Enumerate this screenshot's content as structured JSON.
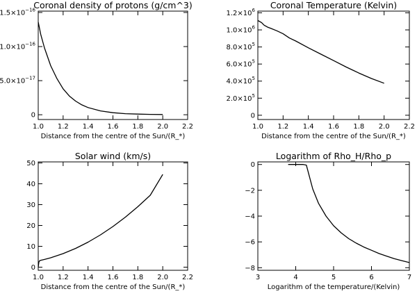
{
  "chart_data": [
    {
      "type": "line",
      "title": "Coronal density of protons (g/cm^3)",
      "xlabel": "Distance from the centre of the Sun/(R_*)",
      "ylabel": "",
      "xlim": [
        1.0,
        2.2
      ],
      "ylim": [
        -7e-18,
        1.52e-16
      ],
      "xticks": [
        {
          "v": 1.0,
          "label": "1.0"
        },
        {
          "v": 1.2,
          "label": "1.2"
        },
        {
          "v": 1.4,
          "label": "1.4"
        },
        {
          "v": 1.6,
          "label": "1.6"
        },
        {
          "v": 1.8,
          "label": "1.8"
        },
        {
          "v": 2.0,
          "label": "2.0"
        },
        {
          "v": 2.2,
          "label": "2.2"
        }
      ],
      "yticks": [
        {
          "v": 0,
          "label": "0"
        },
        {
          "v": 5e-17,
          "label": "5.0×10",
          "exp": "−17"
        },
        {
          "v": 1e-16,
          "label": "1.0×10",
          "exp": "−16"
        },
        {
          "v": 1.5e-16,
          "label": "1.5×10",
          "exp": "−16"
        }
      ],
      "series": [
        {
          "x": [
            1.0,
            1.02,
            1.05,
            1.1,
            1.15,
            1.2,
            1.25,
            1.3,
            1.35,
            1.4,
            1.5,
            1.6,
            1.7,
            1.8,
            1.9,
            2.0
          ],
          "y": [
            1.36e-16,
            1.18e-16,
            9.8e-17,
            7.2e-17,
            5.3e-17,
            3.8e-17,
            2.75e-17,
            2e-17,
            1.45e-17,
            1.05e-17,
            5.6e-18,
            3e-18,
            1.6e-18,
            9e-19,
            5e-19,
            3e-19
          ]
        }
      ]
    },
    {
      "type": "line",
      "title": "Coronal Temperature (Kelvin)",
      "xlabel": "Distance from the centre of the Sun/(R_*)",
      "ylabel": "",
      "xlim": [
        1.0,
        2.2
      ],
      "ylim": [
        -50000.0,
        1220000.0
      ],
      "xticks": [
        {
          "v": 1.0,
          "label": "1.0"
        },
        {
          "v": 1.2,
          "label": "1.2"
        },
        {
          "v": 1.4,
          "label": "1.4"
        },
        {
          "v": 1.6,
          "label": "1.6"
        },
        {
          "v": 1.8,
          "label": "1.8"
        },
        {
          "v": 2.0,
          "label": "2.0"
        },
        {
          "v": 2.2,
          "label": "2.2"
        }
      ],
      "yticks": [
        {
          "v": 0,
          "label": "0"
        },
        {
          "v": 200000.0,
          "label": "2.0×10",
          "exp": "5"
        },
        {
          "v": 400000.0,
          "label": "4.0×10",
          "exp": "5"
        },
        {
          "v": 600000.0,
          "label": "6.0×10",
          "exp": "5"
        },
        {
          "v": 800000.0,
          "label": "8.0×10",
          "exp": "5"
        },
        {
          "v": 1000000.0,
          "label": "1.0×10",
          "exp": "6"
        },
        {
          "v": 1200000.0,
          "label": "1.2×10",
          "exp": "6"
        }
      ],
      "series": [
        {
          "x": [
            1.0,
            1.03,
            1.05,
            1.08,
            1.1,
            1.15,
            1.2,
            1.25,
            1.3,
            1.4,
            1.5,
            1.6,
            1.7,
            1.8,
            1.9,
            2.0
          ],
          "y": [
            1110000.0,
            1085000.0,
            1055000.0,
            1030000.0,
            1020000.0,
            990000.0,
            955000.0,
            905000.0,
            870000.0,
            790000.0,
            715000.0,
            640000.0,
            565000.0,
            495000.0,
            430000.0,
            375000.0
          ]
        }
      ]
    },
    {
      "type": "line",
      "title": "Solar wind (km/s)",
      "xlabel": "Distance from the centre of the Sun/(R_*)",
      "ylabel": "",
      "xlim": [
        1.0,
        2.2
      ],
      "ylim": [
        -1.5,
        50.5
      ],
      "xticks": [
        {
          "v": 1.0,
          "label": "1.0"
        },
        {
          "v": 1.2,
          "label": "1.2"
        },
        {
          "v": 1.4,
          "label": "1.4"
        },
        {
          "v": 1.6,
          "label": "1.6"
        },
        {
          "v": 1.8,
          "label": "1.8"
        },
        {
          "v": 2.0,
          "label": "2.0"
        },
        {
          "v": 2.2,
          "label": "2.2"
        }
      ],
      "yticks": [
        {
          "v": 0,
          "label": "0"
        },
        {
          "v": 10,
          "label": "10"
        },
        {
          "v": 20,
          "label": "20"
        },
        {
          "v": 30,
          "label": "30"
        },
        {
          "v": 40,
          "label": "40"
        },
        {
          "v": 50,
          "label": "50"
        }
      ],
      "series": [
        {
          "x": [
            1.0,
            1.005,
            1.01,
            1.02,
            1.05,
            1.1,
            1.2,
            1.3,
            1.4,
            1.5,
            1.6,
            1.7,
            1.8,
            1.9,
            2.0
          ],
          "y": [
            0.0,
            2.4,
            3.0,
            3.3,
            3.7,
            4.5,
            6.5,
            9.0,
            12.0,
            15.5,
            19.5,
            24.0,
            29.0,
            34.5,
            44.5
          ]
        }
      ]
    },
    {
      "type": "line",
      "title": "Logarithm of Rho_H/Rho_p",
      "xlabel": "Logarithm of the temperature/(Kelvin)",
      "ylabel": "",
      "xlim": [
        3.0,
        7.0
      ],
      "ylim": [
        -8.2,
        0.2
      ],
      "xticks": [
        {
          "v": 3,
          "label": "3"
        },
        {
          "v": 4,
          "label": "4"
        },
        {
          "v": 5,
          "label": "5"
        },
        {
          "v": 6,
          "label": "6"
        },
        {
          "v": 7,
          "label": "7"
        }
      ],
      "yticks": [
        {
          "v": -8,
          "label": "−8"
        },
        {
          "v": -6,
          "label": "−6"
        },
        {
          "v": -4,
          "label": "−4"
        },
        {
          "v": -2,
          "label": "−2"
        },
        {
          "v": 0,
          "label": "0"
        }
      ],
      "series": [
        {
          "x": [
            3.8,
            4.0,
            4.2,
            4.28,
            4.45,
            4.6,
            4.8,
            5.0,
            5.2,
            5.4,
            5.6,
            5.8,
            6.0,
            6.2,
            6.4,
            6.6,
            6.8,
            7.0
          ],
          "y": [
            0.0,
            0.0,
            0.0,
            -0.05,
            -1.9,
            -3.0,
            -4.0,
            -4.75,
            -5.3,
            -5.75,
            -6.1,
            -6.4,
            -6.65,
            -6.9,
            -7.1,
            -7.3,
            -7.45,
            -7.6
          ]
        }
      ]
    }
  ]
}
